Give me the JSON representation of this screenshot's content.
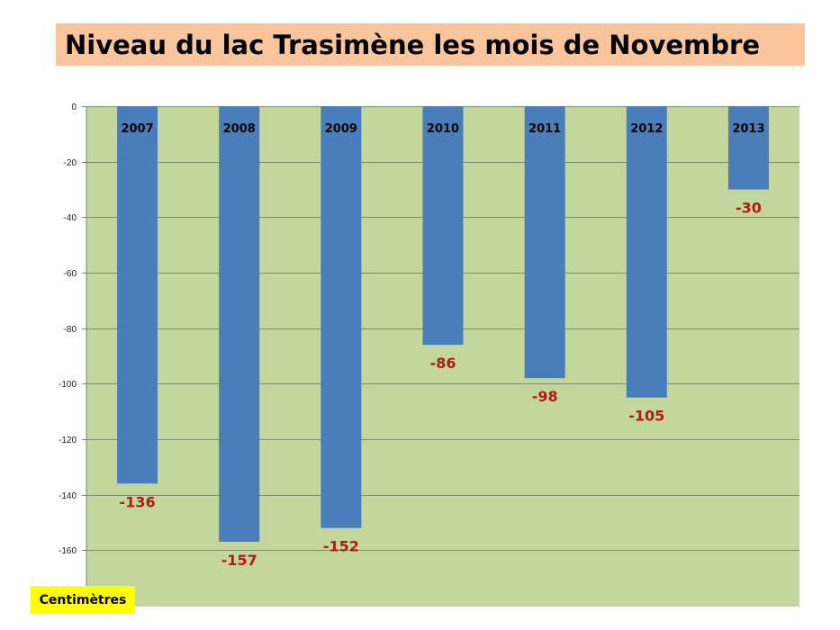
{
  "colors": {
    "title_background": "#F9C59C",
    "unit_background": "#FFFF00",
    "plot_background": "#C3D69B",
    "bar": "#4A7EBB",
    "data_label": "#B01C1C",
    "gridline": "#7F8F6A"
  },
  "chart_data": {
    "type": "bar",
    "title": "Niveau du lac Trasimène les mois de Novembre",
    "unit_label": "Centimètres",
    "xlabel": "",
    "ylabel": "",
    "categories": [
      "2007",
      "2008",
      "2009",
      "2010",
      "2011",
      "2012",
      "2013"
    ],
    "values": [
      -136,
      -157,
      -152,
      -86,
      -98,
      -105,
      -30
    ],
    "data_labels": [
      "-136",
      "-157",
      "-152",
      "-86",
      "-98",
      "-105",
      "-30"
    ],
    "ylim": [
      -180,
      0
    ],
    "yticks": [
      0,
      -20,
      -40,
      -60,
      -80,
      -100,
      -120,
      -140,
      -160
    ],
    "category_labels_position": "top",
    "grid": true,
    "legend": "none"
  }
}
